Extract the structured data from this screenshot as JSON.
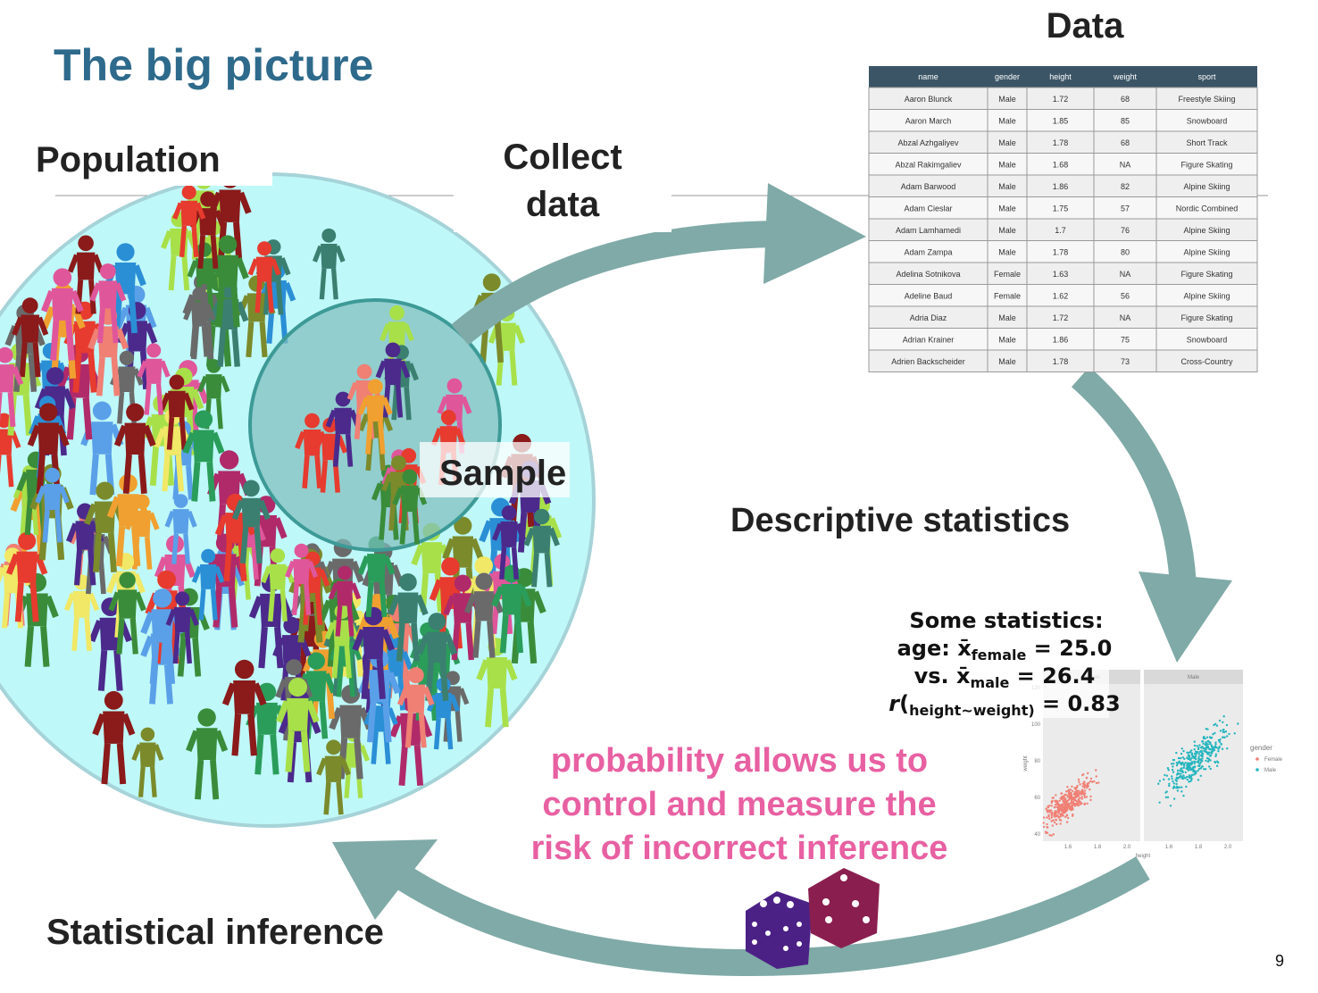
{
  "title": "The big picture",
  "population": "Population",
  "collect": [
    "Collect",
    "data"
  ],
  "data_title": "Data",
  "sample": "Sample",
  "descriptive": "Descriptive statistics",
  "inference": "Statistical inference",
  "page_number": "9",
  "table": {
    "columns": [
      "name",
      "gender",
      "height",
      "weight",
      "sport"
    ],
    "rows": [
      [
        "Aaron Blunck",
        "Male",
        "1.72",
        "68",
        "Freestyle Skiing"
      ],
      [
        "Aaron March",
        "Male",
        "1.85",
        "85",
        "Snowboard"
      ],
      [
        "Abzal Azhgaliyev",
        "Male",
        "1.78",
        "68",
        "Short Track"
      ],
      [
        "Abzal Rakimgaliev",
        "Male",
        "1.68",
        "NA",
        "Figure Skating"
      ],
      [
        "Adam Barwood",
        "Male",
        "1.86",
        "82",
        "Alpine Skiing"
      ],
      [
        "Adam Cieslar",
        "Male",
        "1.75",
        "57",
        "Nordic Combined"
      ],
      [
        "Adam Lamhamedi",
        "Male",
        "1.7",
        "76",
        "Alpine Skiing"
      ],
      [
        "Adam Zampa",
        "Male",
        "1.78",
        "80",
        "Alpine Skiing"
      ],
      [
        "Adelina Sotnikova",
        "Female",
        "1.63",
        "NA",
        "Figure Skating"
      ],
      [
        "Adeline Baud",
        "Female",
        "1.62",
        "56",
        "Alpine Skiing"
      ],
      [
        "Adria Diaz",
        "Male",
        "1.72",
        "NA",
        "Figure Skating"
      ],
      [
        "Adrian Krainer",
        "Male",
        "1.86",
        "75",
        "Snowboard"
      ],
      [
        "Adrien Backscheider",
        "Male",
        "1.78",
        "73",
        "Cross-Country"
      ]
    ]
  },
  "statistics": {
    "heading": "Some statistics:",
    "lines": [
      {
        "before": "age: x̄",
        "sub": "female",
        "after": " = 25.0"
      },
      {
        "before": "vs. x̄",
        "sub": "male",
        "after": " = 26.4"
      },
      {
        "italic": "r",
        "before": "(",
        "sub": "height~weight)",
        "after": " = 0.83"
      }
    ]
  },
  "mini_chart": {
    "facets": [
      "Female",
      "Male"
    ],
    "y_label": "weight",
    "x_label": "height",
    "y_ticks": [
      "40",
      "60",
      "80",
      "100",
      "120"
    ],
    "x_ticks": [
      "1.6",
      "1.8",
      "2.0"
    ],
    "legend_title": "gender",
    "legend": [
      "Female",
      "Male"
    ]
  },
  "note": [
    "probability allows us to",
    "control and measure the",
    "risk of incorrect inference"
  ]
}
